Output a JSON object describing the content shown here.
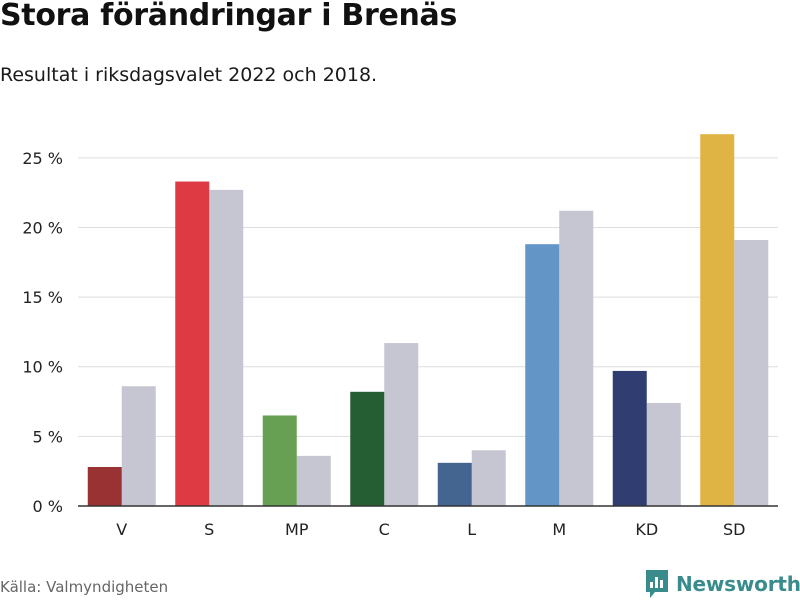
{
  "header": {
    "title": "Stora förändringar i Brenäs",
    "subtitle": "Resultat i riksdagsvalet 2022 och 2018."
  },
  "footer": {
    "source": "Källa: Valmyndigheten",
    "brand": "Newsworthy"
  },
  "colors": {
    "previous_year": "#c6c5d2",
    "gridline": "#dddddd",
    "axis": "#333333",
    "brand": "#3a8c8c"
  },
  "chart_data": {
    "type": "bar",
    "title": "Stora förändringar i Brenäs",
    "subtitle": "Resultat i riksdagsvalet 2022 och 2018.",
    "xlabel": "",
    "ylabel": "",
    "categories": [
      "V",
      "S",
      "MP",
      "C",
      "L",
      "M",
      "KD",
      "SD"
    ],
    "series": [
      {
        "year": "2022",
        "values": [
          2.8,
          23.3,
          6.5,
          8.2,
          3.1,
          18.8,
          9.7,
          26.7
        ],
        "colors": [
          "#993333",
          "#dd3a44",
          "#67a052",
          "#265e34",
          "#456591",
          "#6396c6",
          "#303d70",
          "#e0b444"
        ]
      },
      {
        "year": "2018",
        "values": [
          8.6,
          22.7,
          3.6,
          11.7,
          4.0,
          21.2,
          7.4,
          19.1
        ],
        "color": "#c6c5d2"
      }
    ],
    "ylim": [
      0,
      27
    ],
    "yticks": [
      0,
      5,
      10,
      15,
      20,
      25
    ],
    "ytick_labels": [
      "0 %",
      "5 %",
      "10 %",
      "15 %",
      "20 %",
      "25 %"
    ],
    "grid": true,
    "legend": "none"
  }
}
